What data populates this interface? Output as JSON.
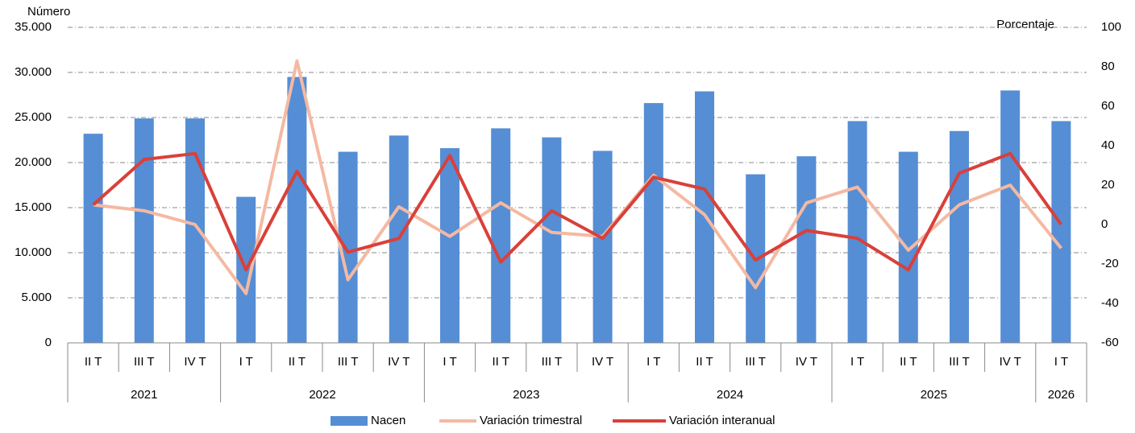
{
  "chart_data": {
    "type": "bar-line",
    "y_label": "Número",
    "y2_label": "Porcentaje",
    "categories": [
      "II T",
      "III T",
      "IV T",
      "I T",
      "II T",
      "III T",
      "IV T",
      "I T",
      "II T",
      "III T",
      "IV T",
      "I T",
      "II T",
      "III T",
      "IV T",
      "I T",
      "II T",
      "III T",
      "IV T",
      "I T"
    ],
    "category_years": [
      "2021",
      "2021",
      "2021",
      "2022",
      "2022",
      "2022",
      "2022",
      "2023",
      "2023",
      "2023",
      "2023",
      "2024",
      "2024",
      "2024",
      "2024",
      "2025",
      "2025",
      "2025",
      "2025",
      "2026"
    ],
    "series": [
      {
        "name": "Nacen",
        "type": "bar",
        "color": "#558ed5",
        "values": [
          23200,
          24900,
          24900,
          16200,
          29500,
          21200,
          23000,
          21600,
          23800,
          22800,
          21300,
          26600,
          27900,
          18700,
          20700,
          24600,
          21200,
          23500,
          28000,
          24600
        ]
      },
      {
        "name": "Variación trimestral",
        "type": "line",
        "axis": "y2",
        "color": "#f4b9a2",
        "values": [
          10,
          7,
          0,
          -35,
          83,
          -28,
          9,
          -6,
          11,
          -4,
          -6,
          25,
          5,
          -32,
          11,
          19,
          -13,
          10,
          20,
          -12
        ]
      },
      {
        "name": "Variación interanual",
        "type": "line",
        "axis": "y2",
        "color": "#d9403a",
        "values": [
          10,
          33,
          36,
          -23,
          27,
          -14,
          -7,
          35,
          -19,
          7,
          -7,
          24,
          18,
          -18,
          -3,
          -7,
          -23,
          26,
          36,
          0
        ]
      }
    ],
    "ylim": [
      0,
      35000
    ],
    "yticks": [
      0,
      {
        "value": 5000,
        "label": "5.000"
      },
      {
        "value": 10000,
        "label": "10.000"
      },
      {
        "value": 15000,
        "label": "15.000"
      },
      {
        "value": 20000,
        "label": "20.000"
      },
      {
        "value": 25000,
        "label": "25.000"
      },
      {
        "value": 30000,
        "label": "30.000"
      },
      {
        "value": 35000,
        "label": "35.000"
      }
    ],
    "y2lim": [
      -60,
      100
    ],
    "y2ticks": [
      -60,
      -40,
      -20,
      0,
      20,
      40,
      60,
      80,
      100
    ],
    "grid": true
  }
}
